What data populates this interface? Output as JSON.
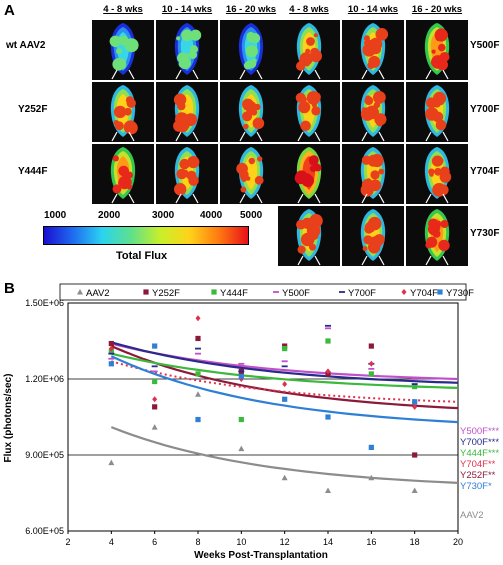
{
  "panel_a": {
    "letter": "A",
    "time_headers": [
      "4 - 8 wks",
      "10 - 14 wks",
      "16 - 20 wks"
    ],
    "left_rows": [
      "wt AAV2",
      "Y252F",
      "Y444F"
    ],
    "right_rows": [
      "Y500F",
      "Y700F",
      "Y704F",
      "Y730F"
    ],
    "colorbar": {
      "ticks": [
        "1000",
        "2000",
        "3000",
        "4000",
        "5000"
      ],
      "label": "Total Flux"
    }
  },
  "panel_b": {
    "letter": "B"
  },
  "chart_data": {
    "type": "scatter",
    "xlabel": "Weeks Post-Transplantation",
    "ylabel": "Flux (photons/sec)",
    "xlim": [
      2,
      20
    ],
    "ylim": [
      600000,
      1500000
    ],
    "x_ticks": [
      "2",
      "4",
      "6",
      "8",
      "10",
      "12",
      "14",
      "16",
      "18",
      "20"
    ],
    "y_ticks": [
      "6.00E+05",
      "9.00E+05",
      "1.20E+06",
      "1.50E+06"
    ],
    "grid": "horizontal",
    "legend_position": "top",
    "series": [
      {
        "name": "AAV2",
        "color": "#8c8c8c",
        "marker": "triangle",
        "x": [
          4,
          6,
          8,
          10,
          12,
          14,
          16,
          18
        ],
        "y": [
          870000,
          1010000,
          1140000,
          925000,
          810000,
          760000,
          810000,
          760000
        ],
        "trend_label": "AAV2"
      },
      {
        "name": "Y252F",
        "color": "#8b1a3a",
        "marker": "square",
        "x": [
          4,
          6,
          8,
          10,
          12,
          14,
          16,
          18
        ],
        "y": [
          1340000,
          1090000,
          1360000,
          1230000,
          1330000,
          1220000,
          1330000,
          900000
        ],
        "trend_label": "Y252F**"
      },
      {
        "name": "Y444F",
        "color": "#3cb83c",
        "marker": "square",
        "x": [
          4,
          6,
          8,
          10,
          12,
          14,
          16,
          18
        ],
        "y": [
          1310000,
          1190000,
          1220000,
          1040000,
          1320000,
          1350000,
          1220000,
          1170000
        ],
        "trend_label": "Y444F***"
      },
      {
        "name": "Y500F",
        "color": "#c050c8",
        "marker": "dash",
        "x": [
          4,
          6,
          8,
          10,
          12,
          14,
          16,
          18
        ],
        "y": [
          1280000,
          1230000,
          1300000,
          1260000,
          1270000,
          1400000,
          1240000,
          1200000
        ],
        "trend_label": "Y500F***"
      },
      {
        "name": "Y700F",
        "color": "#2a2a8c",
        "marker": "dash",
        "x": [
          4,
          6,
          8,
          10,
          12,
          14,
          16,
          18
        ],
        "y": [
          1300000,
          1250000,
          1320000,
          1230000,
          1250000,
          1410000,
          1260000,
          1180000
        ],
        "trend_label": "Y700F***"
      },
      {
        "name": "Y704F",
        "color": "#e0304c",
        "marker": "diamond",
        "x": [
          4,
          6,
          8,
          10,
          12,
          14,
          16,
          18
        ],
        "y": [
          1320000,
          1120000,
          1440000,
          1200000,
          1180000,
          1230000,
          1260000,
          1090000
        ],
        "trend_label": "Y704F**"
      },
      {
        "name": "Y730F",
        "color": "#2e7fd6",
        "marker": "square",
        "x": [
          4,
          6,
          8,
          10,
          12,
          14,
          16,
          18
        ],
        "y": [
          1260000,
          1330000,
          1040000,
          1210000,
          1120000,
          1050000,
          930000,
          1110000
        ],
        "trend_label": "Y730F*"
      }
    ]
  }
}
